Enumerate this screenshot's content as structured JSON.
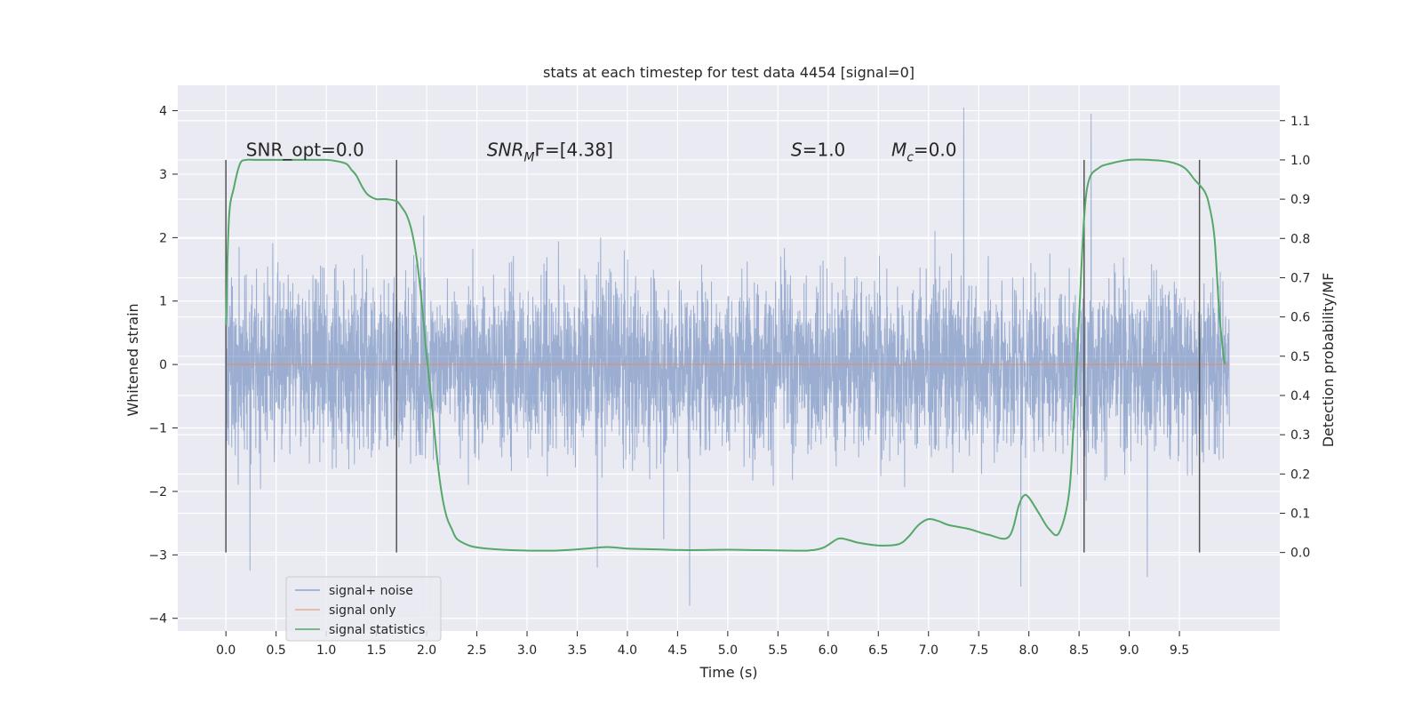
{
  "chart_data": {
    "type": "line",
    "title": "stats at each timestep for test data 4454 [signal=0]",
    "xlabel": "Time (s)",
    "ylabel_left": "Whitened strain",
    "ylabel_right": "Detection probability/MF",
    "xlim": [
      -0.48,
      10.5
    ],
    "ylim_left": [
      -4.2,
      4.4
    ],
    "ylim_right": [
      -0.2,
      1.19
    ],
    "x_ticks": [
      0.0,
      0.5,
      1.0,
      1.5,
      2.0,
      2.5,
      3.0,
      3.5,
      4.0,
      4.5,
      5.0,
      5.5,
      6.0,
      6.5,
      7.0,
      7.5,
      8.0,
      8.5,
      9.0,
      9.5
    ],
    "x_tick_labels": [
      "0.0",
      "0.5",
      "1.0",
      "1.5",
      "2.0",
      "2.5",
      "3.0",
      "3.5",
      "4.0",
      "4.5",
      "5.0",
      "5.5",
      "6.0",
      "6.5",
      "7.0",
      "7.5",
      "8.0",
      "8.5",
      "9.0",
      "9.5"
    ],
    "y_left_ticks": [
      -4,
      -3,
      -2,
      -1,
      0,
      1,
      2,
      3,
      4
    ],
    "y_left_tick_labels": [
      "−4",
      "−3",
      "−2",
      "−1",
      "0",
      "1",
      "2",
      "3",
      "4"
    ],
    "y_right_ticks": [
      0.0,
      0.1,
      0.2,
      0.3,
      0.4,
      0.5,
      0.6,
      0.7,
      0.8,
      0.9,
      1.0,
      1.1
    ],
    "y_right_tick_labels": [
      "0.0",
      "0.1",
      "0.2",
      "0.3",
      "0.4",
      "0.5",
      "0.6",
      "0.7",
      "0.8",
      "0.9",
      "1.0",
      "1.1"
    ],
    "grid": true,
    "legend_placement": "lower-left",
    "series": [
      {
        "name": "signal+ noise",
        "color": "#4c72b0",
        "axis": "left",
        "style": "dense noise trace",
        "x_range": [
          0.0,
          10.0
        ],
        "typical_band": [
          -1.3,
          1.3
        ],
        "envelope": [
          -3.8,
          4.05
        ],
        "peaks": [
          {
            "x": 7.35,
            "y": 4.05
          },
          {
            "x": 8.62,
            "y": 3.95
          },
          {
            "x": 4.62,
            "y": -3.8
          },
          {
            "x": 0.24,
            "y": -3.25
          },
          {
            "x": 3.7,
            "y": -3.2
          },
          {
            "x": 9.18,
            "y": -3.35
          },
          {
            "x": 7.92,
            "y": -3.5
          }
        ]
      },
      {
        "name": "signal only",
        "color": "#dd8452",
        "axis": "left",
        "x": [
          0.0,
          10.0
        ],
        "y": [
          0.0,
          0.0
        ]
      },
      {
        "name": "signal statistics",
        "color": "#55a868",
        "axis": "right",
        "x": [
          0.0,
          0.03,
          0.08,
          0.14,
          0.2,
          0.3,
          0.5,
          0.8,
          1.0,
          1.1,
          1.2,
          1.25,
          1.3,
          1.35,
          1.4,
          1.45,
          1.5,
          1.55,
          1.6,
          1.7,
          1.75,
          1.8,
          1.85,
          1.9,
          1.95,
          2.0,
          2.05,
          2.1,
          2.15,
          2.2,
          2.25,
          2.3,
          2.4,
          2.5,
          2.7,
          3.0,
          3.3,
          3.6,
          3.8,
          4.0,
          4.3,
          4.6,
          5.0,
          5.3,
          5.6,
          5.8,
          5.95,
          6.1,
          6.2,
          6.3,
          6.5,
          6.7,
          6.8,
          6.9,
          7.0,
          7.1,
          7.2,
          7.4,
          7.6,
          7.8,
          7.9,
          7.95,
          8.0,
          8.1,
          8.2,
          8.3,
          8.4,
          8.45,
          8.5,
          8.55,
          8.6,
          8.7,
          8.8,
          9.0,
          9.2,
          9.4,
          9.55,
          9.65,
          9.75,
          9.8,
          9.85,
          9.9,
          9.95
        ],
        "y": [
          0.58,
          0.85,
          0.93,
          0.99,
          1.0,
          1.0,
          1.0,
          1.0,
          1.0,
          0.997,
          0.99,
          0.975,
          0.96,
          0.935,
          0.915,
          0.905,
          0.9,
          0.9,
          0.9,
          0.895,
          0.88,
          0.86,
          0.82,
          0.75,
          0.64,
          0.5,
          0.38,
          0.25,
          0.15,
          0.09,
          0.06,
          0.035,
          0.02,
          0.013,
          0.008,
          0.005,
          0.005,
          0.01,
          0.014,
          0.01,
          0.008,
          0.006,
          0.007,
          0.006,
          0.005,
          0.005,
          0.012,
          0.035,
          0.032,
          0.025,
          0.018,
          0.021,
          0.04,
          0.07,
          0.085,
          0.08,
          0.07,
          0.06,
          0.045,
          0.04,
          0.12,
          0.145,
          0.14,
          0.1,
          0.06,
          0.05,
          0.15,
          0.35,
          0.6,
          0.85,
          0.95,
          0.98,
          0.99,
          1.0,
          1.0,
          0.995,
          0.98,
          0.95,
          0.92,
          0.88,
          0.8,
          0.6,
          0.48
        ]
      }
    ],
    "vertical_markers": {
      "color": "#555555",
      "x": [
        0.0,
        1.7,
        8.55,
        9.7
      ],
      "y_range_right": [
        0.0,
        1.0
      ]
    },
    "annotations": [
      {
        "text": "SNR_opt=0.0",
        "x": 0.2,
        "y_right": 1.01,
        "style": "plain"
      },
      {
        "main": "SNR",
        "sub": "M",
        "suffix": "F=[4.38]",
        "x": 2.6,
        "y_right": 1.01,
        "style": "math"
      },
      {
        "main": "S",
        "sub": "",
        "suffix": "=1.0",
        "x": 5.63,
        "y_right": 1.01,
        "style": "math"
      },
      {
        "main": "M",
        "sub": "c",
        "suffix": "=0.0",
        "x": 6.63,
        "y_right": 1.01,
        "style": "math"
      }
    ]
  }
}
